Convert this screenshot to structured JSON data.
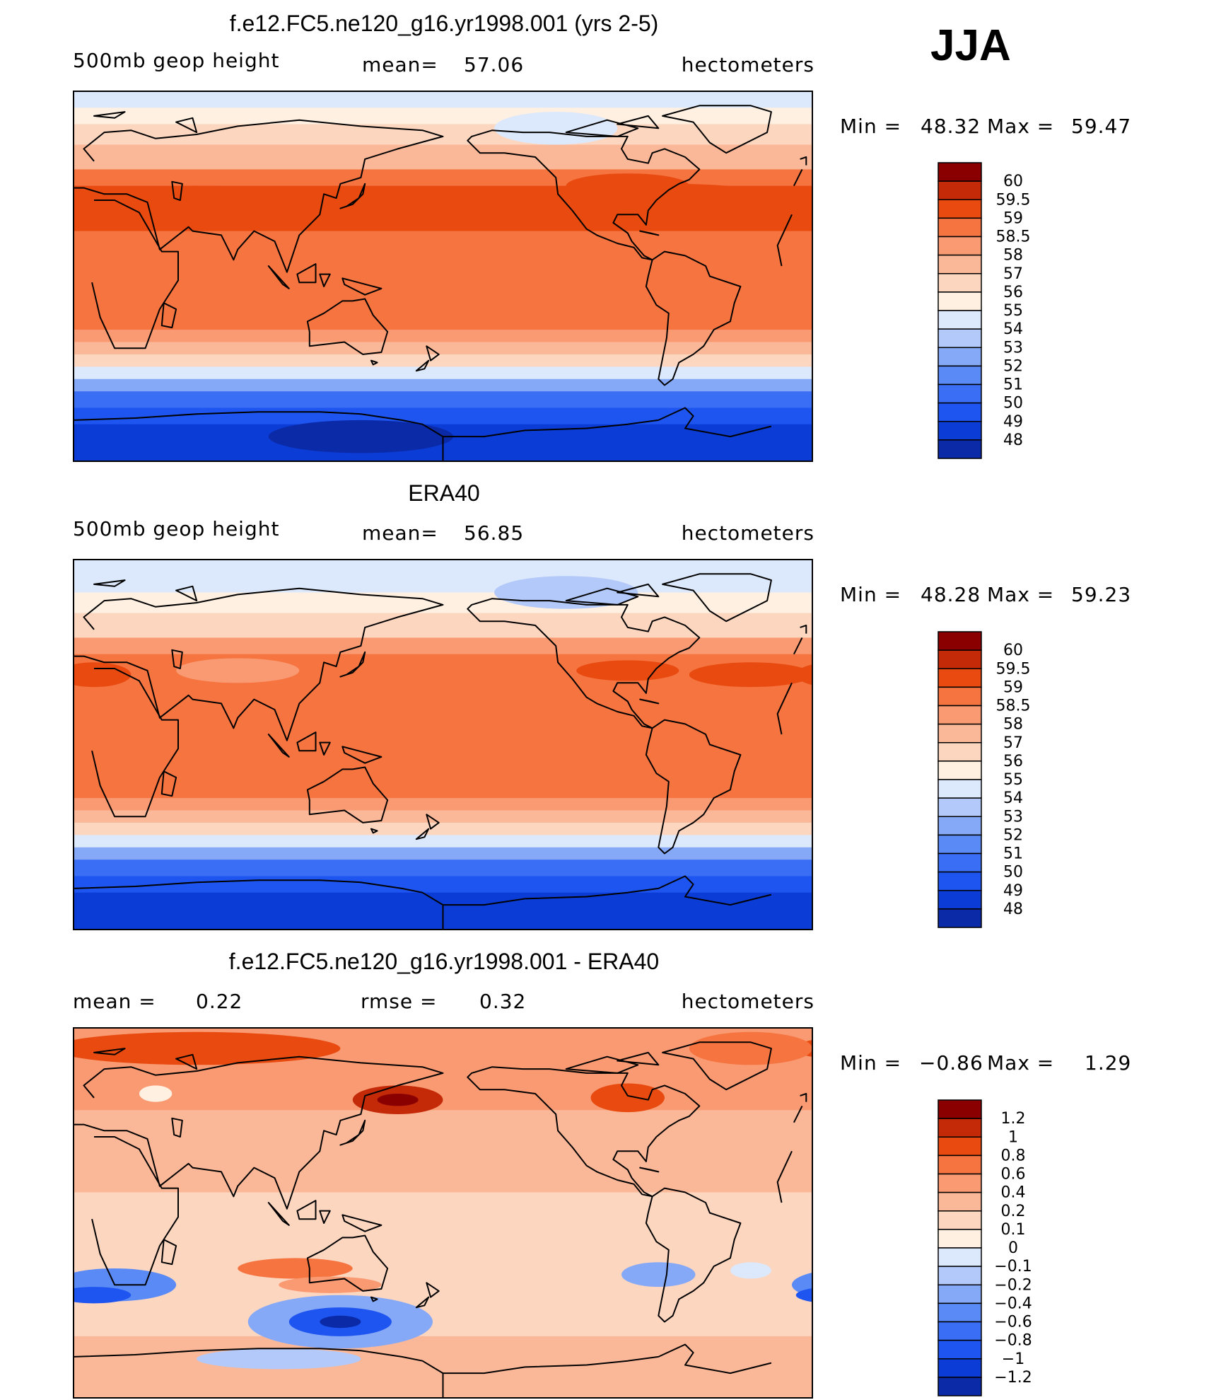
{
  "figure": {
    "season": "JJA"
  },
  "colormaps": {
    "absolute": [
      "#000080",
      "#0a2aa8",
      "#0c3cd6",
      "#1e55f0",
      "#3a6ef5",
      "#5a8af5",
      "#85a8f7",
      "#b3c9f9",
      "#dce8fb",
      "#fff0e2",
      "#fdd6c0",
      "#fbb898",
      "#f99a72",
      "#f57440",
      "#e84a10",
      "#c42a08",
      "#8a0000"
    ],
    "diff": [
      "#000080",
      "#0a2aa8",
      "#0c3cd6",
      "#1e55f0",
      "#3a6ef5",
      "#5a8af5",
      "#85a8f7",
      "#b3c9f9",
      "#dce8fb",
      "#fff0e2",
      "#fdd6c0",
      "#fbb898",
      "#f99a72",
      "#f57440",
      "#e84a10",
      "#c42a08",
      "#8a0000"
    ]
  },
  "panels": [
    {
      "id": "model",
      "title": "f.e12.FC5.ne120_g16.yr1998.001 (yrs 2-5)",
      "left_label": "500mb  geop  height",
      "center_label": "mean=",
      "center_value": "57.06",
      "units": "hectometers",
      "min_label": "Min  =",
      "min_value": "48.32",
      "max_label": "Max  =",
      "max_value": "59.47",
      "colorbar": [
        "60",
        "59.5",
        "59",
        "58.5",
        "58",
        "57",
        "56",
        "55",
        "54",
        "53",
        "52",
        "51",
        "50",
        "49",
        "48"
      ],
      "colormap": "absolute",
      "bands": [
        {
          "lat": 90,
          "level": 8
        },
        {
          "lat": 82,
          "level": 9
        },
        {
          "lat": 74,
          "level": 10
        },
        {
          "lat": 64,
          "level": 11
        },
        {
          "lat": 52,
          "level": 13
        },
        {
          "lat": 44,
          "level": 14
        },
        {
          "lat": 34,
          "level": 14
        },
        {
          "lat": 22,
          "level": 13
        },
        {
          "lat": 0,
          "level": 13
        },
        {
          "lat": -18,
          "level": 13
        },
        {
          "lat": -26,
          "level": 12
        },
        {
          "lat": -32,
          "level": 11
        },
        {
          "lat": -38,
          "level": 10
        },
        {
          "lat": -44,
          "level": 8
        },
        {
          "lat": -50,
          "level": 6
        },
        {
          "lat": -56,
          "level": 4
        },
        {
          "lat": -64,
          "level": 3
        },
        {
          "lat": -72,
          "level": 2
        },
        {
          "lat": -90,
          "level": 2
        }
      ],
      "blobs": [
        {
          "lon": 60,
          "lat": 38,
          "rlon": 55,
          "rlat": 6,
          "level": 14
        },
        {
          "lon": 290,
          "lat": 38,
          "rlon": 55,
          "rlat": 7,
          "level": 14
        },
        {
          "lon": 150,
          "lat": 36,
          "rlon": 12,
          "rlat": 3,
          "level": 14
        },
        {
          "lon": 270,
          "lat": 44,
          "rlon": 30,
          "rlat": 6,
          "level": 14
        },
        {
          "lon": 235,
          "lat": 72,
          "rlon": 30,
          "rlat": 8,
          "level": 8
        },
        {
          "lon": 140,
          "lat": -78,
          "rlon": 45,
          "rlat": 8,
          "level": 1
        }
      ]
    },
    {
      "id": "obs",
      "title": "ERA40",
      "left_label": "500mb  geop  height",
      "center_label": "mean=",
      "center_value": "56.85",
      "units": "hectometers",
      "min_label": "Min  =",
      "min_value": "48.28",
      "max_label": "Max  =",
      "max_value": "59.23",
      "colorbar": [
        "60",
        "59.5",
        "59",
        "58.5",
        "58",
        "57",
        "56",
        "55",
        "54",
        "53",
        "52",
        "51",
        "50",
        "49",
        "48"
      ],
      "colormap": "absolute",
      "bands": [
        {
          "lat": 90,
          "level": 8
        },
        {
          "lat": 82,
          "level": 8
        },
        {
          "lat": 74,
          "level": 9
        },
        {
          "lat": 64,
          "level": 10
        },
        {
          "lat": 52,
          "level": 12
        },
        {
          "lat": 44,
          "level": 13
        },
        {
          "lat": 34,
          "level": 13
        },
        {
          "lat": 22,
          "level": 13
        },
        {
          "lat": 0,
          "level": 13
        },
        {
          "lat": -18,
          "level": 13
        },
        {
          "lat": -26,
          "level": 12
        },
        {
          "lat": -32,
          "level": 11
        },
        {
          "lat": -38,
          "level": 10
        },
        {
          "lat": -44,
          "level": 8
        },
        {
          "lat": -50,
          "level": 6
        },
        {
          "lat": -56,
          "level": 4
        },
        {
          "lat": -64,
          "level": 3
        },
        {
          "lat": -72,
          "level": 2
        },
        {
          "lat": -90,
          "level": 1
        }
      ],
      "blobs": [
        {
          "lon": 330,
          "lat": 34,
          "rlon": 30,
          "rlat": 6,
          "level": 14
        },
        {
          "lon": 10,
          "lat": 34,
          "rlon": 18,
          "rlat": 6,
          "level": 14
        },
        {
          "lon": 270,
          "lat": 36,
          "rlon": 25,
          "rlat": 5,
          "level": 14
        },
        {
          "lon": 80,
          "lat": 36,
          "rlon": 30,
          "rlat": 6,
          "level": 12
        },
        {
          "lon": 240,
          "lat": 74,
          "rlon": 35,
          "rlat": 8,
          "level": 7
        }
      ]
    },
    {
      "id": "diff",
      "title": "f.e12.FC5.ne120_g16.yr1998.001 - ERA40",
      "left_label": "mean  =",
      "left_value": "0.22",
      "center_label": "rmse  =",
      "center_value": "0.32",
      "units": "hectometers",
      "min_label": "Min  =",
      "min_value": "−0.86",
      "max_label": "Max  =",
      "max_value": "1.29",
      "colorbar": [
        "1.2",
        "1",
        "0.8",
        "0.6",
        "0.4",
        "0.2",
        "0.1",
        "0",
        "−0.1",
        "−0.2",
        "−0.4",
        "−0.6",
        "−0.8",
        "−1",
        "−1.2"
      ],
      "colormap": "diff",
      "bands": [
        {
          "lat": 90,
          "level": 12
        },
        {
          "lat": 70,
          "level": 12
        },
        {
          "lat": 50,
          "level": 11
        },
        {
          "lat": 30,
          "level": 11
        },
        {
          "lat": 10,
          "level": 10
        },
        {
          "lat": -30,
          "level": 10
        },
        {
          "lat": -50,
          "level": 10
        },
        {
          "lat": -60,
          "level": 11
        },
        {
          "lat": -90,
          "level": 11
        }
      ],
      "blobs": [
        {
          "lon": 60,
          "lat": 80,
          "rlon": 70,
          "rlat": 8,
          "level": 14
        },
        {
          "lon": 330,
          "lat": 80,
          "rlon": 30,
          "rlat": 8,
          "level": 13
        },
        {
          "lon": 158,
          "lat": 55,
          "rlon": 22,
          "rlat": 7,
          "level": 15
        },
        {
          "lon": 158,
          "lat": 55,
          "rlon": 10,
          "rlat": 3,
          "level": 16
        },
        {
          "lon": 270,
          "lat": 56,
          "rlon": 18,
          "rlat": 7,
          "level": 14
        },
        {
          "lon": 40,
          "lat": 58,
          "rlon": 8,
          "rlat": 4,
          "level": 9
        },
        {
          "lon": 108,
          "lat": -27,
          "rlon": 28,
          "rlat": 5,
          "level": 13
        },
        {
          "lon": 125,
          "lat": -35,
          "rlon": 25,
          "rlat": 4,
          "level": 12
        },
        {
          "lon": 20,
          "lat": -35,
          "rlon": 30,
          "rlat": 8,
          "level": 5
        },
        {
          "lon": 10,
          "lat": -40,
          "rlon": 18,
          "rlat": 4,
          "level": 3
        },
        {
          "lon": 130,
          "lat": -53,
          "rlon": 45,
          "rlat": 13,
          "level": 6
        },
        {
          "lon": 130,
          "lat": -53,
          "rlon": 25,
          "rlat": 7,
          "level": 3
        },
        {
          "lon": 130,
          "lat": -53,
          "rlon": 10,
          "rlat": 3,
          "level": 1
        },
        {
          "lon": 100,
          "lat": -71,
          "rlon": 40,
          "rlat": 5,
          "level": 7
        },
        {
          "lon": 285,
          "lat": -30,
          "rlon": 18,
          "rlat": 6,
          "level": 6
        },
        {
          "lon": 330,
          "lat": -28,
          "rlon": 10,
          "rlat": 4,
          "level": 8
        }
      ]
    }
  ]
}
